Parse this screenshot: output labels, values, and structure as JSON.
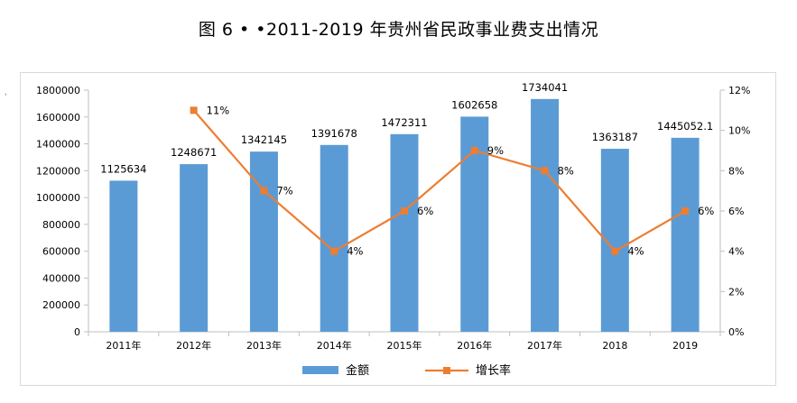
{
  "title": "图 6 • •2011-2019 年贵州省民政事业费支出情况",
  "stray_mark": "'",
  "colors": {
    "bar": "#5b9bd5",
    "line": "#ed7d31",
    "axis": "#bfbfbf"
  },
  "chart_data": {
    "type": "bar",
    "categories": [
      "2011年",
      "2012年",
      "2013年",
      "2014年",
      "2015年",
      "2016年",
      "2017年",
      "2018",
      "2019"
    ],
    "series": [
      {
        "name": "金额",
        "type": "bar",
        "axis": "left",
        "values": [
          1125634,
          1248671,
          1342145,
          1391678,
          1472311,
          1602658,
          1734041,
          1363187,
          1445052.1
        ],
        "labels": [
          "1125634",
          "1248671",
          "1342145",
          "1391678",
          "1472311",
          "1602658",
          "1734041",
          "1363187",
          "1445052.1"
        ]
      },
      {
        "name": "增长率",
        "type": "line",
        "axis": "right",
        "values": [
          null,
          11,
          7,
          4,
          6,
          9,
          8,
          4,
          6
        ],
        "labels": [
          "",
          "11%",
          "7%",
          "4%",
          "6%",
          "9%",
          "8%",
          "4%",
          "6%"
        ]
      }
    ],
    "ylim": [
      0,
      1800000
    ],
    "y_ticks": [
      "0",
      "200000",
      "400000",
      "600000",
      "800000",
      "1000000",
      "1200000",
      "1400000",
      "1600000",
      "1800000"
    ],
    "y2lim": [
      0,
      12
    ],
    "y2_ticks": [
      "0%",
      "2%",
      "4%",
      "6%",
      "8%",
      "10%",
      "12%"
    ],
    "grid": false,
    "legend": "bottom"
  }
}
